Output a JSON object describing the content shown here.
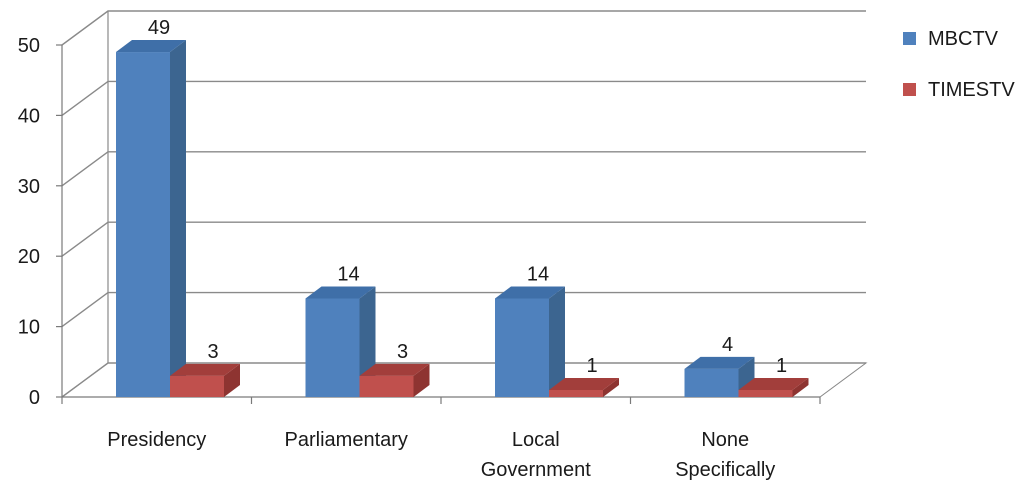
{
  "chart_data": {
    "type": "bar",
    "categories": [
      "Presidency",
      "Parliamentary",
      "Local Government",
      "None Specifically"
    ],
    "category_lines": [
      [
        "Presidency"
      ],
      [
        "Parliamentary"
      ],
      [
        "Local",
        "Government"
      ],
      [
        "None",
        "Specifically"
      ]
    ],
    "series": [
      {
        "name": "MBCTV",
        "values": [
          49,
          14,
          14,
          4
        ],
        "color": "#4f81bd",
        "side": "#3c6590",
        "top": "#3f6fa8"
      },
      {
        "name": "TIMESTV",
        "values": [
          3,
          3,
          1,
          1
        ],
        "color": "#c0504d",
        "side": "#8e3431",
        "top": "#a23e3b"
      }
    ],
    "ylim": [
      0,
      50
    ],
    "yticks": [
      0,
      10,
      20,
      30,
      40,
      50
    ],
    "grid": true,
    "legend_position": "right",
    "three_d": true
  }
}
